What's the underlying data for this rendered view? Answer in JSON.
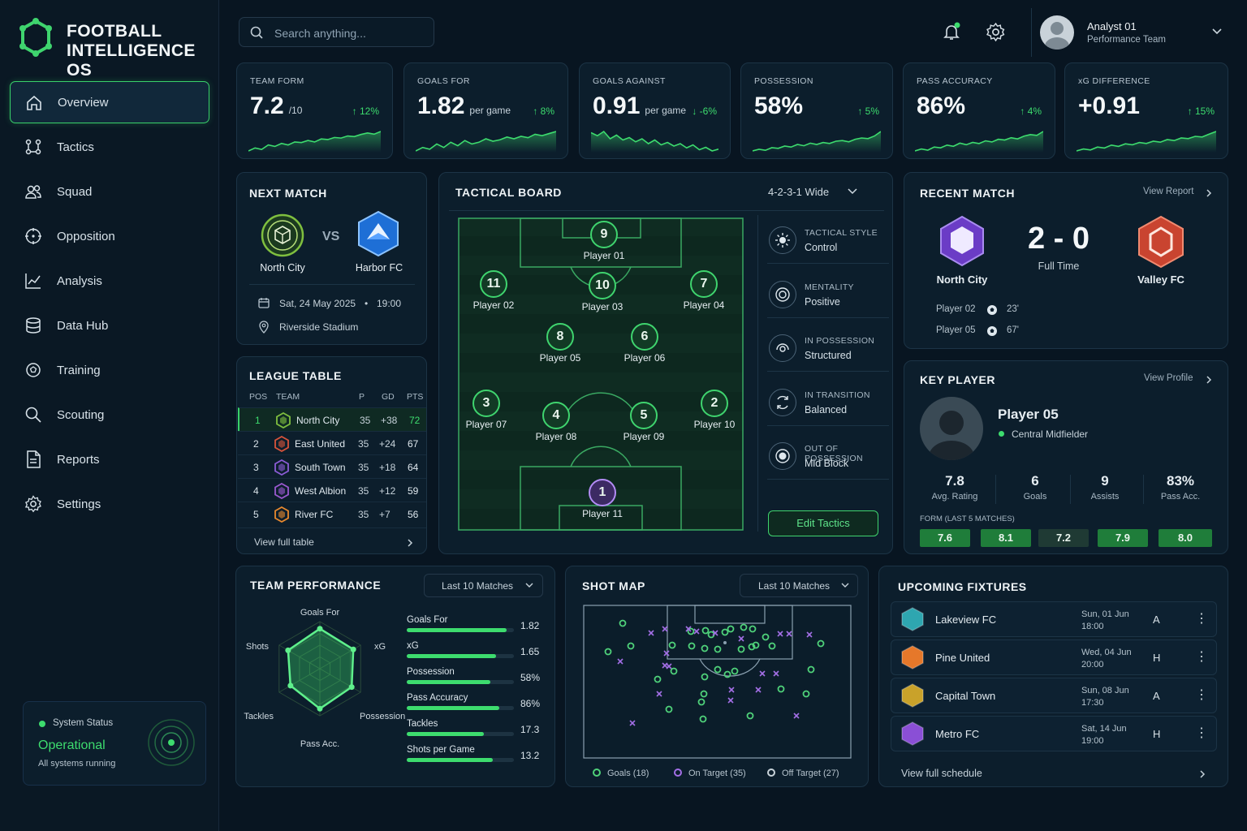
{
  "brand": {
    "line1": "FOOTBALL",
    "line2": "INTELLIGENCE OS"
  },
  "nav": [
    {
      "label": "Overview",
      "icon": "home-icon"
    },
    {
      "label": "Tactics",
      "icon": "tactics-icon"
    },
    {
      "label": "Squad",
      "icon": "users-icon"
    },
    {
      "label": "Opposition",
      "icon": "target-icon"
    },
    {
      "label": "Analysis",
      "icon": "chart-line-icon"
    },
    {
      "label": "Data Hub",
      "icon": "database-icon"
    },
    {
      "label": "Training",
      "icon": "training-icon"
    },
    {
      "label": "Scouting",
      "icon": "search-icon"
    },
    {
      "label": "Reports",
      "icon": "document-icon"
    },
    {
      "label": "Settings",
      "icon": "gear-icon"
    }
  ],
  "system": {
    "title": "System Status",
    "state": "Operational",
    "sub": "All systems running"
  },
  "search": {
    "placeholder": "Search anything..."
  },
  "user": {
    "name": "Analyst 01",
    "team": "Performance Team"
  },
  "kpis": [
    {
      "label": "TEAM FORM",
      "value": "7.2",
      "unit": "/10",
      "change": "12%",
      "dir": "up",
      "spark": [
        3,
        4,
        3.5,
        5,
        4.5,
        5.5,
        5,
        6,
        5.8,
        6.5,
        6,
        7,
        6.8,
        7.5,
        7.3,
        8,
        7.8,
        8.5,
        9,
        8.6,
        9.5
      ]
    },
    {
      "label": "GOALS FOR",
      "value": "1.82",
      "unit": "per game",
      "change": "8%",
      "dir": "up",
      "spark": [
        4,
        5,
        4.5,
        6,
        5,
        6.5,
        5.5,
        7,
        6,
        6.5,
        7.5,
        6.8,
        7.2,
        8,
        7.5,
        8.2,
        7.8,
        8.8,
        8.4,
        9,
        9.6
      ]
    },
    {
      "label": "GOALS AGAINST",
      "value": "0.91",
      "unit": "per game",
      "change": "-6%",
      "dir": "down",
      "spark": [
        8,
        7.5,
        8.2,
        7,
        7.6,
        6.8,
        7.2,
        6.5,
        7,
        6.2,
        6.8,
        6,
        6.4,
        5.8,
        6.2,
        5.5,
        6,
        5.2,
        5.6,
        5,
        5.3
      ]
    },
    {
      "label": "POSSESSION",
      "value": "58%",
      "unit": "",
      "change": "5%",
      "dir": "up",
      "spark": [
        3,
        3.5,
        3.2,
        4,
        3.8,
        4.5,
        4.2,
        5,
        4.6,
        5.4,
        5,
        5.6,
        5.3,
        6,
        6.2,
        5.8,
        6.6,
        7,
        6.8,
        7.6,
        9
      ]
    },
    {
      "label": "PASS ACCURACY",
      "value": "86%",
      "unit": "",
      "change": "4%",
      "dir": "up",
      "spark": [
        4,
        4.5,
        4.2,
        5,
        4.8,
        5.5,
        5.2,
        6,
        5.6,
        6.2,
        5.9,
        6.6,
        6.3,
        7,
        6.8,
        7.4,
        7.1,
        7.8,
        8.2,
        8,
        9
      ]
    },
    {
      "label": "xG DIFFERENCE",
      "value": "+0.91",
      "unit": "",
      "change": "15%",
      "dir": "up",
      "spark": [
        3,
        3.6,
        3.3,
        4.2,
        3.9,
        4.8,
        4.4,
        5.2,
        4.9,
        5.6,
        5.3,
        6,
        5.7,
        6.5,
        6.2,
        7,
        6.8,
        7.5,
        7.3,
        8.2,
        9
      ]
    }
  ],
  "next_match": {
    "title": "NEXT MATCH",
    "home": "North City",
    "vs": "VS",
    "away": "Harbor FC",
    "date": "Sat, 24 May 2025",
    "time": "19:00",
    "venue": "Riverside Stadium"
  },
  "league": {
    "title": "LEAGUE TABLE",
    "headers": [
      "POS",
      "TEAM",
      "P",
      "GD",
      "PTS"
    ],
    "rows": [
      {
        "pos": "1",
        "team": "North City",
        "p": "35",
        "gd": "+38",
        "pts": "72",
        "color": "#7fbf3f"
      },
      {
        "pos": "2",
        "team": "East United",
        "p": "35",
        "gd": "+24",
        "pts": "67",
        "color": "#d9533b"
      },
      {
        "pos": "3",
        "team": "South Town",
        "p": "35",
        "gd": "+18",
        "pts": "64",
        "color": "#8b5cd6"
      },
      {
        "pos": "4",
        "team": "West Albion",
        "p": "35",
        "gd": "+12",
        "pts": "59",
        "color": "#9b59d0"
      },
      {
        "pos": "5",
        "team": "River FC",
        "p": "35",
        "gd": "+7",
        "pts": "56",
        "color": "#e8892e"
      }
    ],
    "link": "View full table"
  },
  "tactical": {
    "title": "TACTICAL BOARD",
    "formation": "4-2-3-1 Wide",
    "players": [
      {
        "num": "9",
        "name": "Player 01"
      },
      {
        "num": "11",
        "name": "Player 02"
      },
      {
        "num": "10",
        "name": "Player 03"
      },
      {
        "num": "7",
        "name": "Player 04"
      },
      {
        "num": "8",
        "name": "Player 05"
      },
      {
        "num": "6",
        "name": "Player 06"
      },
      {
        "num": "3",
        "name": "Player 07"
      },
      {
        "num": "4",
        "name": "Player 08"
      },
      {
        "num": "5",
        "name": "Player 09"
      },
      {
        "num": "2",
        "name": "Player 10"
      },
      {
        "num": "1",
        "name": "Player 11"
      }
    ],
    "styles": [
      {
        "title": "TACTICAL STYLE",
        "value": "Control"
      },
      {
        "title": "MENTALITY",
        "value": "Positive"
      },
      {
        "title": "IN POSSESSION",
        "value": "Structured"
      },
      {
        "title": "IN TRANSITION",
        "value": "Balanced"
      },
      {
        "title": "OUT OF POSSESSION",
        "value": "Mid Block"
      }
    ],
    "edit": "Edit Tactics"
  },
  "recent": {
    "title": "RECENT MATCH",
    "link": "View Report",
    "home": "North City",
    "away": "Valley FC",
    "score": "2 - 0",
    "status": "Full Time",
    "scorers": [
      {
        "name": "Player 02",
        "min": "23'"
      },
      {
        "name": "Player 05",
        "min": "67'"
      }
    ]
  },
  "key_player": {
    "title": "KEY PLAYER",
    "link": "View Profile",
    "name": "Player 05",
    "role": "Central Midfielder",
    "stats": [
      {
        "v": "7.8",
        "l": "Avg. Rating"
      },
      {
        "v": "6",
        "l": "Goals"
      },
      {
        "v": "9",
        "l": "Assists"
      },
      {
        "v": "83%",
        "l": "Pass Acc."
      }
    ],
    "form_label": "FORM (LAST 5 MATCHES)",
    "form": [
      "7.6",
      "8.1",
      "7.2",
      "7.9",
      "8.0"
    ]
  },
  "team_perf": {
    "title": "TEAM PERFORMANCE",
    "filter": "Last 10 Matches",
    "radar_axes": [
      "Goals For",
      "xG",
      "Possession",
      "Pass Acc.",
      "Tackles",
      "Shots"
    ],
    "radar_values": [
      0.85,
      0.82,
      0.78,
      0.85,
      0.72,
      0.78
    ],
    "bars": [
      {
        "label": "Goals For",
        "value": "1.82",
        "fill": 0.93
      },
      {
        "label": "xG",
        "value": "1.65",
        "fill": 0.83
      },
      {
        "label": "Possession",
        "value": "58%",
        "fill": 0.78
      },
      {
        "label": "Pass Accuracy",
        "value": "86%",
        "fill": 0.86
      },
      {
        "label": "Tackles",
        "value": "17.3",
        "fill": 0.72
      },
      {
        "label": "Shots per Game",
        "value": "13.2",
        "fill": 0.8
      }
    ]
  },
  "shot_map": {
    "title": "SHOT MAP",
    "filter": "Last 10 Matches",
    "legend": [
      {
        "label": "Goals (18)",
        "color": "#4fd27a"
      },
      {
        "label": "On Target (35)",
        "color": "#a36fe6"
      },
      {
        "label": "Off Target (27)",
        "color": "#c9d3da"
      }
    ]
  },
  "fixtures": {
    "title": "UPCOMING FIXTURES",
    "link": "View full schedule",
    "rows": [
      {
        "team": "Lakeview FC",
        "date": "Sun, 01 Jun",
        "time": "18:00",
        "ha": "A",
        "color": "#2ea6b0"
      },
      {
        "team": "Pine United",
        "date": "Wed, 04 Jun",
        "time": "20:00",
        "ha": "H",
        "color": "#e6782a"
      },
      {
        "team": "Capital Town",
        "date": "Sun, 08 Jun",
        "time": "17:30",
        "ha": "A",
        "color": "#c9a22a"
      },
      {
        "team": "Metro FC",
        "date": "Sat, 14 Jun",
        "time": "19:00",
        "ha": "H",
        "color": "#8a4fd6"
      }
    ]
  },
  "colors": {
    "accent": "#39d16a",
    "bg": "#081521",
    "card": "#0c1e2c"
  }
}
